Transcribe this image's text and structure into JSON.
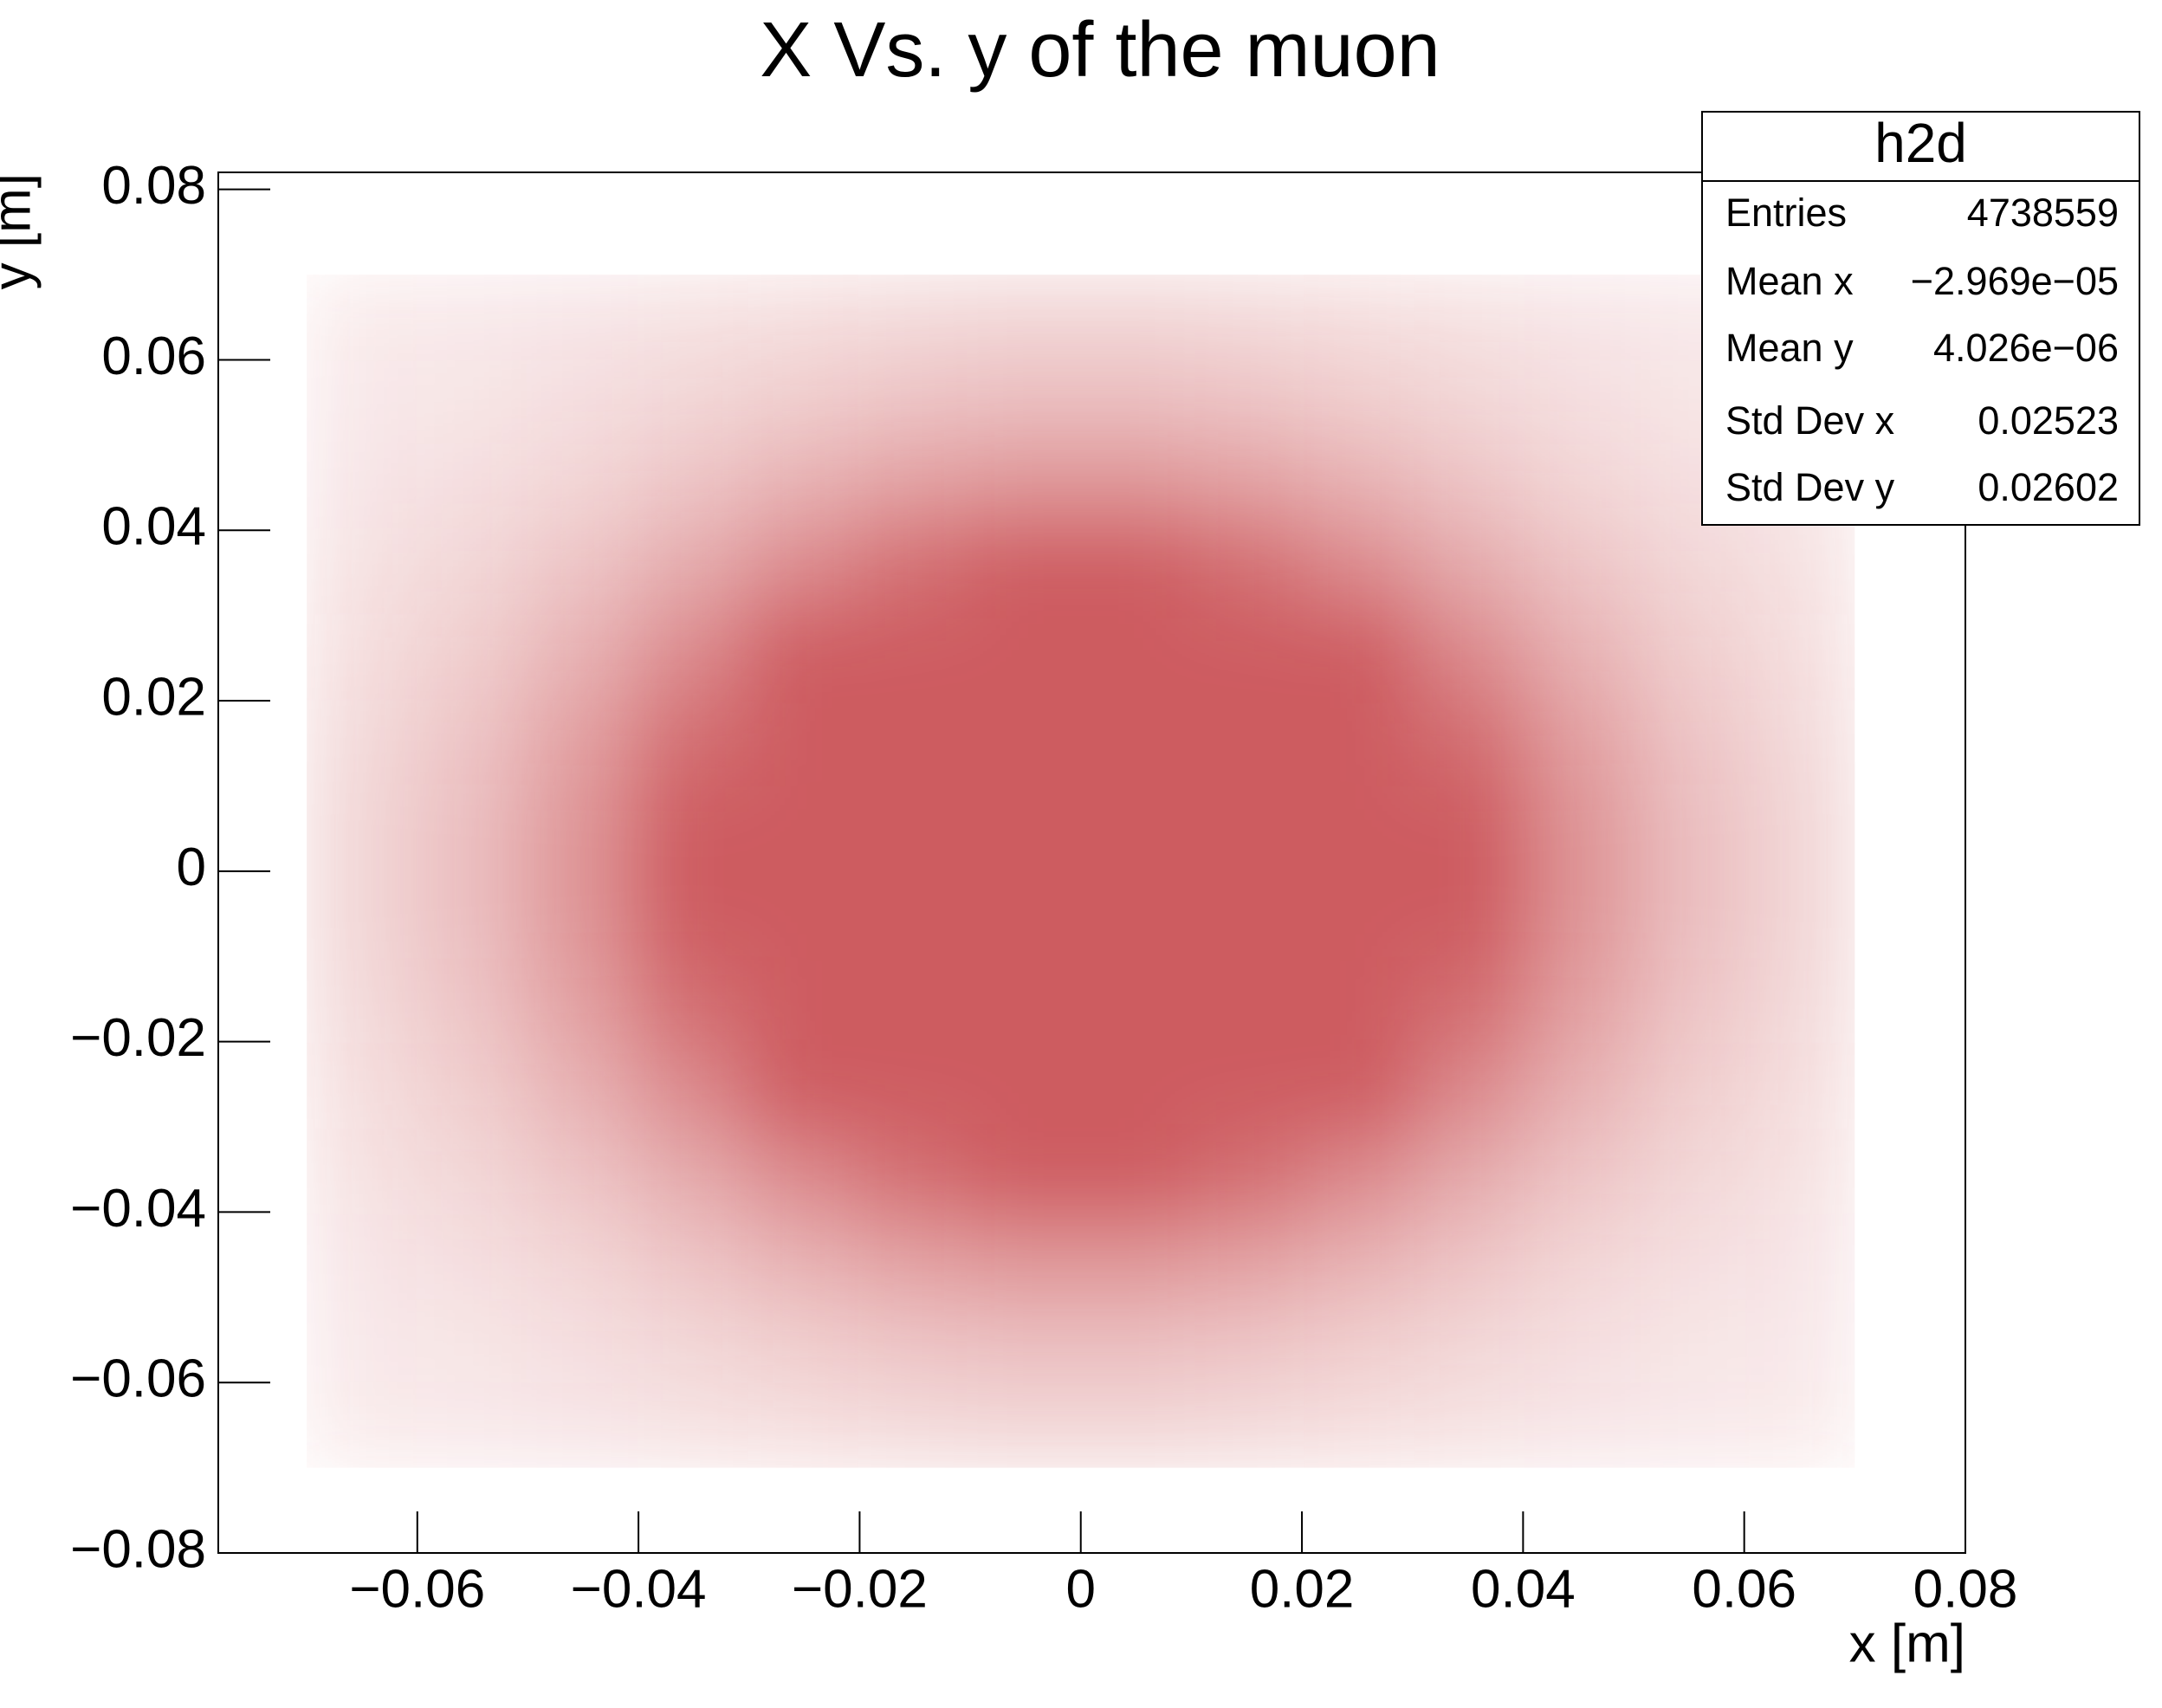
{
  "chart_data": {
    "type": "hist2d",
    "title": "X  Vs. y of the muon",
    "x_label": "x [m]",
    "y_label": "y [m]",
    "color": "#cd5c60",
    "xlim": [
      -0.078,
      0.08
    ],
    "ylim": [
      -0.08,
      0.082
    ],
    "xticks": [
      {
        "value": -0.06,
        "label": "−0.06"
      },
      {
        "value": -0.04,
        "label": "−0.04"
      },
      {
        "value": -0.02,
        "label": "−0.02"
      },
      0,
      0.02,
      0.04,
      0.06,
      0.08
    ],
    "yticks": [
      {
        "value": -0.08,
        "label": "−0.08"
      },
      {
        "value": -0.06,
        "label": "−0.06"
      },
      {
        "value": -0.04,
        "label": "−0.04"
      },
      {
        "value": -0.02,
        "label": "−0.02"
      },
      0,
      0.02,
      0.04,
      0.06,
      0.08
    ],
    "bins_x": [
      -0.07,
      -0.06,
      -0.05,
      -0.04,
      -0.03,
      -0.02,
      -0.01,
      0,
      0.01,
      0.02,
      0.03,
      0.04,
      0.05,
      0.06,
      0.07
    ],
    "bins_y": [
      -0.07,
      -0.06,
      -0.05,
      -0.04,
      -0.03,
      -0.02,
      -0.01,
      0,
      0.01,
      0.02,
      0.03,
      0.04,
      0.05,
      0.06,
      0.07
    ],
    "counts": [
      [
        450,
        970,
        1830,
        3050,
        4470,
        5770,
        6560,
        6560,
        5770,
        4470,
        3050,
        1830,
        970,
        450
      ],
      [
        970,
        2070,
        3930,
        6550,
        9590,
        12380,
        14070,
        14070,
        12380,
        9590,
        6550,
        3930,
        2070,
        970
      ],
      [
        1830,
        3930,
        7460,
        12420,
        18190,
        23480,
        26680,
        26680,
        23480,
        18190,
        12420,
        7460,
        3930,
        1830
      ],
      [
        3050,
        6550,
        12420,
        20680,
        30300,
        39100,
        44430,
        44430,
        39100,
        30300,
        20680,
        12420,
        6550,
        3050
      ],
      [
        4470,
        9590,
        18190,
        30300,
        44390,
        57280,
        65090,
        65090,
        57280,
        44390,
        30300,
        18190,
        9590,
        4470
      ],
      [
        5770,
        12380,
        23480,
        39100,
        57280,
        73930,
        84000,
        84000,
        73930,
        57280,
        39100,
        23480,
        12380,
        5770
      ],
      [
        6560,
        14070,
        26680,
        44430,
        65090,
        84000,
        95450,
        95450,
        84000,
        65090,
        44430,
        26680,
        14070,
        6560
      ],
      [
        6560,
        14070,
        26680,
        44430,
        65090,
        84000,
        95450,
        95450,
        84000,
        65090,
        44430,
        26680,
        14070,
        6560
      ],
      [
        5770,
        12380,
        23480,
        39100,
        57280,
        73930,
        84000,
        84000,
        73930,
        57280,
        39100,
        23480,
        12380,
        5770
      ],
      [
        4470,
        9590,
        18190,
        30300,
        44390,
        57280,
        65090,
        65090,
        57280,
        44390,
        30300,
        18190,
        9590,
        4470
      ],
      [
        3050,
        6550,
        12420,
        20680,
        30300,
        39100,
        44430,
        44430,
        39100,
        30300,
        20680,
        12420,
        6550,
        3050
      ],
      [
        1830,
        3930,
        7460,
        12420,
        18190,
        23480,
        26680,
        26680,
        23480,
        18190,
        12420,
        7460,
        3930,
        1830
      ],
      [
        970,
        2070,
        3930,
        6550,
        9590,
        12380,
        14070,
        14070,
        12380,
        9590,
        6550,
        3930,
        2070,
        970
      ],
      [
        450,
        970,
        1830,
        3050,
        4470,
        5770,
        6560,
        6560,
        5770,
        4470,
        3050,
        1830,
        970,
        450
      ]
    ],
    "stats": {
      "title": "h2d",
      "rows": [
        {
          "label": "Entries",
          "value": 4738559
        },
        {
          "label": "Mean x",
          "value": {
            "value": -2.969e-05,
            "label": "−2.969e−05"
          }
        },
        {
          "label": "Mean y",
          "value": {
            "value": 4.026e-06,
            "label": "4.026e−06"
          }
        },
        {
          "label": "Std Dev x",
          "value": 0.02523
        },
        {
          "label": "Std Dev y",
          "value": 0.02602
        }
      ]
    }
  }
}
